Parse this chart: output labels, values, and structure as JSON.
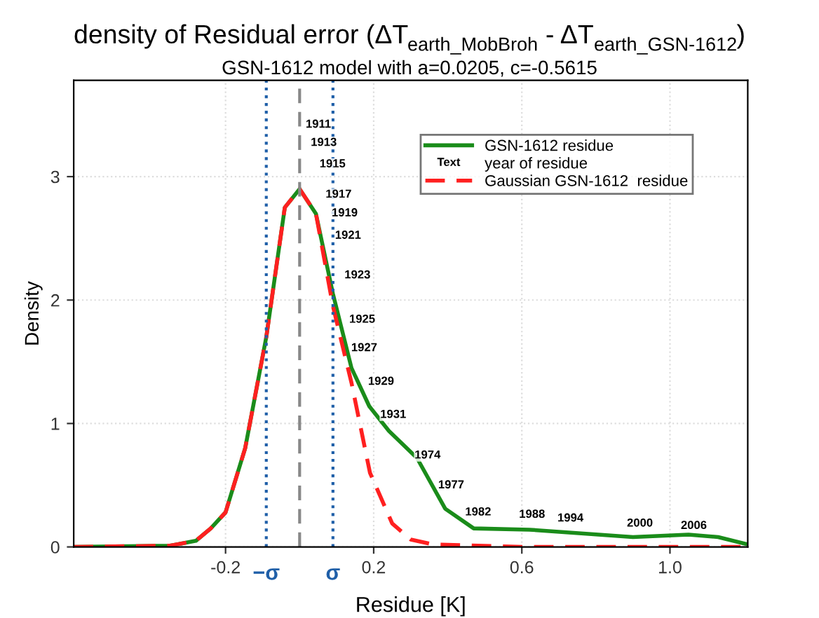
{
  "chart_data": {
    "type": "line",
    "title": "density of Residual error (ΔT$_{earth_MobBroh}$ - ΔT$_{earth_GSN-1612}$)",
    "subtitle": "GSN-1612 model with a=0.0205, c=-0.5615",
    "xlabel": "Residue [K]",
    "ylabel": "Density",
    "xlim": [
      -0.61,
      1.21
    ],
    "ylim": [
      0,
      3.78
    ],
    "xticks": [
      -0.2,
      0.2,
      0.6,
      {
        "value": 1,
        "label": "1.0"
      }
    ],
    "yticks": [
      0,
      1,
      2,
      3
    ],
    "grid": true,
    "legend": "top right",
    "series": [
      {
        "name": "GSN-1612 residue",
        "color": "#1a8c1a",
        "line_style": "solid",
        "x": [
          -0.61,
          -0.35,
          -0.28,
          -0.24,
          -0.2,
          -0.147,
          -0.09,
          -0.04,
          0,
          0.044,
          0.09,
          0.14,
          0.188,
          0.241,
          0.317,
          0.393,
          0.47,
          0.62,
          0.9,
          1.05,
          1.13,
          1.21
        ],
        "values": [
          0,
          0.01,
          0.05,
          0.15,
          0.28,
          0.8,
          1.7,
          2.75,
          2.9,
          2.7,
          2.05,
          1.45,
          1.14,
          0.94,
          0.72,
          0.31,
          0.15,
          0.14,
          0.08,
          0.1,
          0.08,
          0.02
        ]
      },
      {
        "name": "year of residue",
        "type": "other"
      },
      {
        "name": "Gaussian GSN-1612  residue",
        "color": "#ff2020",
        "line_style": "dashed",
        "x": [
          -0.61,
          -0.35,
          -0.28,
          -0.24,
          -0.2,
          -0.147,
          -0.09,
          -0.04,
          0,
          0.044,
          0.09,
          0.14,
          0.19,
          0.25,
          0.3,
          0.36,
          0.6,
          1.21
        ],
        "values": [
          0,
          0.01,
          0.05,
          0.15,
          0.28,
          0.8,
          1.7,
          2.75,
          2.9,
          2.7,
          1.95,
          1.33,
          0.6,
          0.19,
          0.06,
          0.02,
          0,
          0
        ]
      }
    ],
    "ref_lines": [
      {
        "axis": "x",
        "value": -0.09,
        "label": "−σ",
        "color": "#1f5fa8",
        "line_style": "dotted"
      },
      {
        "axis": "x",
        "value": 0,
        "color": "#888888",
        "line_style": "dashed"
      },
      {
        "axis": "x",
        "value": 0.09,
        "label": "σ",
        "color": "#1f5fa8",
        "line_style": "dotted"
      }
    ],
    "annotations": [
      "Text",
      "1911",
      "1913",
      "1915",
      "1917",
      "1919",
      "1921",
      "1923",
      "1925",
      "1927",
      "1929",
      "1931",
      "1974",
      "1977",
      "1982",
      "1988",
      "1994",
      "2000",
      "2006"
    ]
  }
}
